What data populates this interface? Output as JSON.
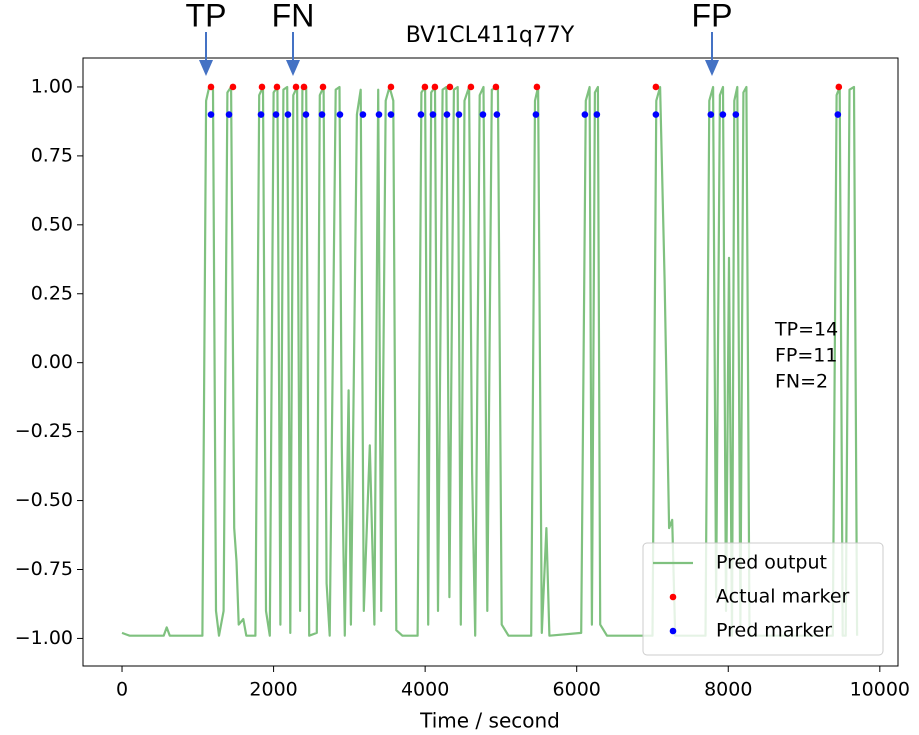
{
  "chart_data": {
    "type": "line",
    "title": "BV1CL411q77Y",
    "x_label": "Time / second",
    "xlim": [
      -515,
      10240
    ],
    "ylim": [
      -1.1,
      1.105
    ],
    "xticks": [
      0,
      2000,
      4000,
      6000,
      8000,
      10000
    ],
    "yticks": [
      {
        "value": 1,
        "label": "1.00"
      },
      {
        "value": 0.75,
        "label": "0.75"
      },
      {
        "value": 0.5,
        "label": "0.50"
      },
      {
        "value": 0.25,
        "label": "0.25"
      },
      {
        "value": 0,
        "label": "0.00"
      },
      {
        "value": -0.25,
        "label": "−0.25"
      },
      {
        "value": -0.5,
        "label": "−0.50"
      },
      {
        "value": -0.75,
        "label": "−0.75"
      },
      {
        "value": -1,
        "label": "−1.00"
      }
    ],
    "legend": "lower right",
    "series": [
      {
        "name": "Pred output",
        "color": "#7fc17f",
        "kind": "line",
        "x": [
          0,
          100,
          550,
          590,
          630,
          1060,
          1110,
          1150,
          1200,
          1240,
          1280,
          1340,
          1390,
          1440,
          1480,
          1510,
          1540,
          1600,
          1640,
          1760,
          1810,
          1860,
          1900,
          1950,
          2000,
          2050,
          2090,
          2130,
          2180,
          2220,
          2260,
          2310,
          2350,
          2380,
          2430,
          2470,
          2570,
          2610,
          2660,
          2700,
          2740,
          2820,
          2870,
          2900,
          2940,
          2990,
          3020,
          3100,
          3150,
          3190,
          3270,
          3330,
          3380,
          3420,
          3480,
          3530,
          3580,
          3620,
          3700,
          3900,
          3950,
          4000,
          4040,
          4080,
          4130,
          4170,
          4230,
          4280,
          4320,
          4380,
          4430,
          4470,
          4520,
          4580,
          4620,
          4660,
          4720,
          4770,
          4820,
          4880,
          4960,
          5010,
          5100,
          5400,
          5450,
          5490,
          5540,
          5600,
          5640,
          6060,
          6120,
          6170,
          6200,
          6240,
          6280,
          6310,
          6400,
          7000,
          7050,
          7100,
          7160,
          7220,
          7260,
          7300,
          7700,
          7750,
          7800,
          7840,
          7890,
          7930,
          7970,
          8010,
          8050,
          8080,
          8120,
          8160,
          8200,
          8240,
          8280,
          9380,
          9430,
          9470,
          9510,
          9550,
          9600,
          9660,
          9700
        ],
        "values": [
          -0.98,
          -0.99,
          -0.99,
          -0.96,
          -0.99,
          -0.99,
          0.95,
          1.0,
          0.99,
          -0.9,
          -0.99,
          -0.9,
          0.98,
          1.0,
          -0.6,
          -0.72,
          -0.95,
          -0.93,
          -0.99,
          -0.99,
          0.97,
          1.0,
          -0.9,
          -0.99,
          0.98,
          1.0,
          -0.95,
          0.99,
          1.0,
          -0.98,
          0.97,
          1.0,
          -0.9,
          0.99,
          1.0,
          -0.99,
          -0.98,
          0.97,
          1.0,
          -0.8,
          -0.99,
          0.99,
          1.0,
          -0.3,
          -0.99,
          -0.1,
          -0.95,
          0.9,
          0.99,
          -0.9,
          -0.3,
          -0.95,
          0.99,
          -0.9,
          0.95,
          1.0,
          0.95,
          -0.97,
          -0.99,
          -0.99,
          0.98,
          1.0,
          -0.95,
          0.98,
          1.0,
          -0.9,
          0.99,
          1.0,
          -0.85,
          0.99,
          1.0,
          -0.95,
          0.95,
          1.0,
          -0.4,
          -0.99,
          0.97,
          1.0,
          -0.9,
          0.99,
          1.0,
          -0.95,
          -0.99,
          -0.99,
          0.95,
          1.0,
          -0.98,
          -0.6,
          -0.99,
          -0.98,
          0.95,
          1.0,
          -0.95,
          0.98,
          1.0,
          -0.95,
          -0.99,
          -0.99,
          0.95,
          1.0,
          0.3,
          -0.6,
          -0.57,
          -0.99,
          -0.99,
          0.95,
          1.0,
          -0.85,
          0.97,
          1.0,
          -0.9,
          0.38,
          -0.99,
          0.95,
          1.0,
          -0.95,
          0.98,
          1.0,
          -0.99,
          -0.99,
          0.97,
          1.0,
          -0.99,
          -0.99,
          0.99,
          1.0,
          -0.99
        ]
      },
      {
        "name": "Actual marker",
        "color": "#ff0000",
        "kind": "scatter",
        "x": [
          1174,
          1464,
          1847,
          2045,
          2296,
          2401,
          2652,
          3549,
          3997,
          4129,
          4327,
          4604,
          4934,
          5475,
          7045,
          9459
        ],
        "values": [
          1,
          1,
          1,
          1,
          1,
          1,
          1,
          1,
          1,
          1,
          1,
          1,
          1,
          1,
          1,
          1
        ]
      },
      {
        "name": "Pred marker",
        "color": "#0000ff",
        "kind": "scatter",
        "x": [
          1174,
          1412,
          1834,
          2032,
          2190,
          2427,
          2639,
          2876,
          3179,
          3391,
          3549,
          3945,
          4103,
          4288,
          4446,
          4763,
          4947,
          5462,
          6108,
          6266,
          7045,
          7770,
          7929,
          8100,
          9446
        ],
        "values": [
          0.9,
          0.9,
          0.9,
          0.9,
          0.9,
          0.9,
          0.9,
          0.9,
          0.9,
          0.9,
          0.9,
          0.9,
          0.9,
          0.9,
          0.9,
          0.9,
          0.9,
          0.9,
          0.9,
          0.9,
          0.9,
          0.9,
          0.9,
          0.9,
          0.9
        ]
      }
    ],
    "annotations": [
      "TP",
      "FN",
      "FP"
    ],
    "stats": [
      "TP=14",
      "FP=11",
      "FN=2"
    ]
  }
}
